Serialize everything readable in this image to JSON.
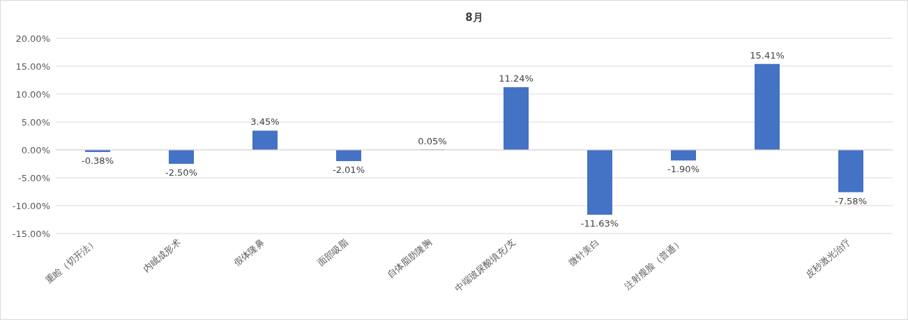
{
  "chart_data": {
    "type": "bar",
    "title": "8月",
    "categories": [
      "重睑（切开法）",
      "内眦成形术",
      "假体隆鼻",
      "面部吸脂",
      "自体脂肪隆胸",
      "中端玻尿酸填充/支",
      "微针美白",
      "注射瘦脸（普通）",
      null,
      "皮秒激光治疗"
    ],
    "values": [
      -0.38,
      -2.5,
      3.45,
      -2.01,
      0.05,
      11.24,
      -11.63,
      -1.9,
      15.41,
      -7.58
    ],
    "value_labels": [
      "-0.38%",
      "-2.50%",
      "3.45%",
      "-2.01%",
      "0.05%",
      "11.24%",
      "-11.63%",
      "-1.90%",
      "15.41%",
      "-7.58%"
    ],
    "color": "#4472c4",
    "ylim": [
      -15,
      20
    ],
    "yticks": [
      {
        "value": -15,
        "label": "-15.00%"
      },
      {
        "value": -10,
        "label": "-10.00%"
      },
      {
        "value": -5,
        "label": "-5.00%"
      },
      {
        "value": 0,
        "label": "0.00%"
      },
      {
        "value": 5,
        "label": "5.00%"
      },
      {
        "value": 10,
        "label": "10.00%"
      },
      {
        "value": 15,
        "label": "15.00%"
      },
      {
        "value": 20,
        "label": "20.00%"
      }
    ],
    "grid": "y"
  }
}
